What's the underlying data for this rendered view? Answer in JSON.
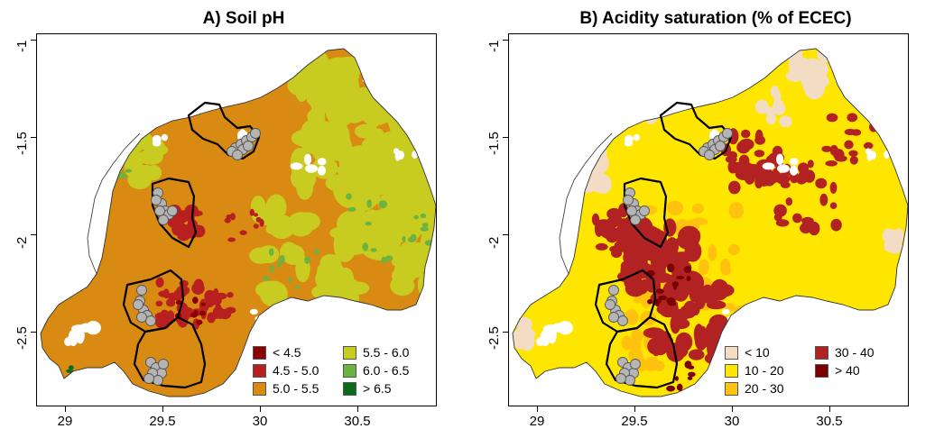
{
  "panels": [
    {
      "id": "A",
      "title": "A) Soil pH",
      "base_color": "#d98a12",
      "legend": [
        {
          "label": "< 4.5",
          "color": "#8b0000"
        },
        {
          "label": "4.5 - 5.0",
          "color": "#b81f1f"
        },
        {
          "label": "5.0 - 5.5",
          "color": "#d98a12"
        },
        {
          "label": "5.5 - 6.0",
          "color": "#c8cc20"
        },
        {
          "label": "6.0 - 6.5",
          "color": "#6db33f"
        },
        {
          "label": "> 6.5",
          "color": "#0b6b1a"
        }
      ]
    },
    {
      "id": "B",
      "title": "B) Acidity saturation (% of ECEC)",
      "base_color": "#ffe600",
      "legend": [
        {
          "label": "< 10",
          "color": "#f2dcc4"
        },
        {
          "label": "10 - 20",
          "color": "#ffe600"
        },
        {
          "label": "20 - 30",
          "color": "#ffc20e"
        },
        {
          "label": "30 - 40",
          "color": "#b22222"
        },
        {
          "label": "> 40",
          "color": "#7a0000"
        }
      ]
    }
  ],
  "axes": {
    "x_ticks": [
      "29",
      "29.5",
      "30",
      "30.5"
    ],
    "y_ticks": [
      "-1",
      "-1.5",
      "-2",
      "-2.5"
    ]
  },
  "markers": {
    "color": "#b5b5b5",
    "outline": "#555555"
  }
}
